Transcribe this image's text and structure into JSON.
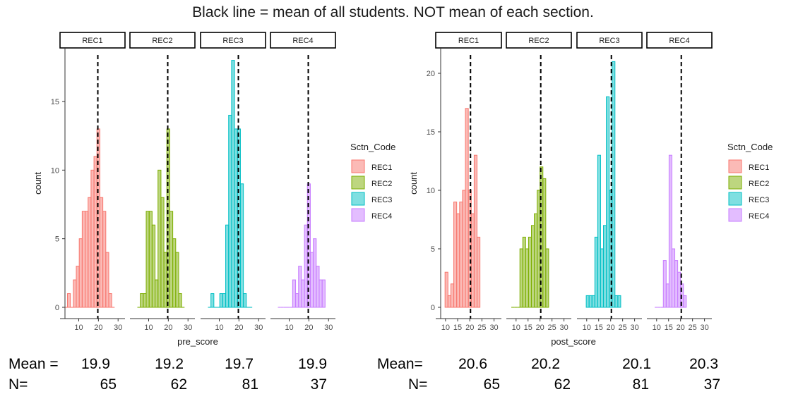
{
  "title": "Black line = mean of all students. NOT mean of each section.",
  "colors": {
    "REC1": "#F8766D",
    "REC2": "#7CAE00",
    "REC3": "#00BFC4",
    "REC4": "#C77CFF",
    "mean_line": "#000000"
  },
  "chart_data": [
    {
      "type": "bar",
      "subtype": "faceted-histogram",
      "xlabel": "pre_score",
      "ylabel": "count",
      "ylim": [
        0,
        19
      ],
      "yticks": [
        0,
        5,
        10,
        15
      ],
      "xlim": [
        3,
        31
      ],
      "xticks": [
        10,
        20,
        30
      ],
      "bin_width": 1.5,
      "overall_mean": 19.7,
      "legend": {
        "title": "Sctn_Code",
        "entries": [
          "REC1",
          "REC2",
          "REC3",
          "REC4"
        ],
        "position": "right"
      },
      "facets": [
        {
          "name": "REC1",
          "bins": [
            [
              3.5,
              0
            ],
            [
              5,
              1
            ],
            [
              6.5,
              0
            ],
            [
              8,
              2
            ],
            [
              9.5,
              3
            ],
            [
              11,
              5
            ],
            [
              12.5,
              7
            ],
            [
              14,
              7
            ],
            [
              15.5,
              8
            ],
            [
              17,
              10
            ],
            [
              18.5,
              11
            ],
            [
              20,
              13
            ],
            [
              21.5,
              8
            ],
            [
              23,
              7
            ],
            [
              24.5,
              4
            ],
            [
              26,
              1
            ],
            [
              27.5,
              0
            ]
          ]
        },
        {
          "name": "REC2",
          "bins": [
            [
              5,
              0
            ],
            [
              6.5,
              1
            ],
            [
              8,
              1
            ],
            [
              9.5,
              7
            ],
            [
              11,
              7
            ],
            [
              12.5,
              6
            ],
            [
              14,
              2
            ],
            [
              15.5,
              10
            ],
            [
              17,
              8
            ],
            [
              18.5,
              4
            ],
            [
              20,
              13
            ],
            [
              21.5,
              7
            ],
            [
              23,
              5
            ],
            [
              24.5,
              4
            ],
            [
              26,
              1
            ],
            [
              27.5,
              0
            ]
          ]
        },
        {
          "name": "REC3",
          "bins": [
            [
              5,
              0
            ],
            [
              6.5,
              1
            ],
            [
              8,
              0
            ],
            [
              9.5,
              0
            ],
            [
              11,
              1
            ],
            [
              12.5,
              1
            ],
            [
              14,
              6
            ],
            [
              15.5,
              14
            ],
            [
              17,
              18
            ],
            [
              18.5,
              13
            ],
            [
              20,
              13
            ],
            [
              21.5,
              9
            ],
            [
              23,
              1
            ],
            [
              24.5,
              0
            ],
            [
              26,
              0
            ]
          ]
        },
        {
          "name": "REC4",
          "bins": [
            [
              5,
              0
            ],
            [
              6.5,
              0
            ],
            [
              8,
              0
            ],
            [
              9.5,
              0
            ],
            [
              11,
              0
            ],
            [
              12.5,
              2
            ],
            [
              14,
              1
            ],
            [
              15.5,
              3
            ],
            [
              17,
              2
            ],
            [
              18.5,
              6
            ],
            [
              20,
              9
            ],
            [
              21.5,
              4
            ],
            [
              23,
              5
            ],
            [
              24.5,
              3
            ],
            [
              26,
              2
            ],
            [
              27.5,
              2
            ]
          ]
        }
      ],
      "summary": {
        "mean_label": "Mean =",
        "n_label": "N=",
        "means": [
          "19.9",
          "19.2",
          "19.7",
          "19.9"
        ],
        "ns": [
          "65",
          "62",
          "81",
          "37"
        ]
      }
    },
    {
      "type": "bar",
      "subtype": "faceted-histogram",
      "xlabel": "post_score",
      "ylabel": "count",
      "ylim": [
        0,
        22
      ],
      "yticks": [
        0,
        5,
        10,
        15,
        20
      ],
      "xlim": [
        8,
        31
      ],
      "xticks": [
        10,
        15,
        20,
        25,
        30
      ],
      "bin_width": 1.2,
      "overall_mean": 20.3,
      "legend": {
        "title": "Sctn_Code",
        "entries": [
          "REC1",
          "REC2",
          "REC3",
          "REC4"
        ],
        "position": "right"
      },
      "facets": [
        {
          "name": "REC1",
          "bins": [
            [
              10.4,
              3
            ],
            [
              11.6,
              1
            ],
            [
              12.8,
              2
            ],
            [
              14,
              9
            ],
            [
              15.2,
              8
            ],
            [
              16.4,
              9
            ],
            [
              17.6,
              10
            ],
            [
              18.8,
              17
            ],
            [
              20,
              10
            ],
            [
              21.2,
              8
            ],
            [
              22.4,
              13
            ],
            [
              23.6,
              6
            ]
          ]
        },
        {
          "name": "REC2",
          "bins": [
            [
              8.6,
              0
            ],
            [
              9.8,
              0
            ],
            [
              11,
              0
            ],
            [
              12.2,
              5
            ],
            [
              13.4,
              6
            ],
            [
              14.6,
              5
            ],
            [
              15.8,
              6
            ],
            [
              17,
              7
            ],
            [
              18.2,
              8
            ],
            [
              19.4,
              10
            ],
            [
              20.6,
              12
            ],
            [
              21.8,
              11
            ],
            [
              23,
              5
            ]
          ]
        },
        {
          "name": "REC3",
          "bins": [
            [
              10.4,
              1
            ],
            [
              11.6,
              1
            ],
            [
              12.8,
              1
            ],
            [
              14,
              6
            ],
            [
              15.2,
              13
            ],
            [
              16.4,
              5
            ],
            [
              17.6,
              7
            ],
            [
              18.8,
              18
            ],
            [
              20,
              10
            ],
            [
              21.2,
              21
            ],
            [
              22.4,
              1
            ],
            [
              23.6,
              1
            ]
          ]
        },
        {
          "name": "REC4",
          "bins": [
            [
              9.8,
              0
            ],
            [
              11,
              0
            ],
            [
              12.2,
              0
            ],
            [
              13.4,
              4
            ],
            [
              14.6,
              2
            ],
            [
              15.8,
              13
            ],
            [
              17,
              5
            ],
            [
              18.2,
              4
            ],
            [
              19.4,
              3
            ],
            [
              20.6,
              2
            ],
            [
              21.8,
              1
            ]
          ]
        }
      ],
      "summary": {
        "mean_label": "Mean=",
        "n_label": "N=",
        "means": [
          "20.6",
          "20.2",
          "20.1",
          "20.3"
        ],
        "ns": [
          "65",
          "62",
          "81",
          "37"
        ]
      }
    }
  ]
}
